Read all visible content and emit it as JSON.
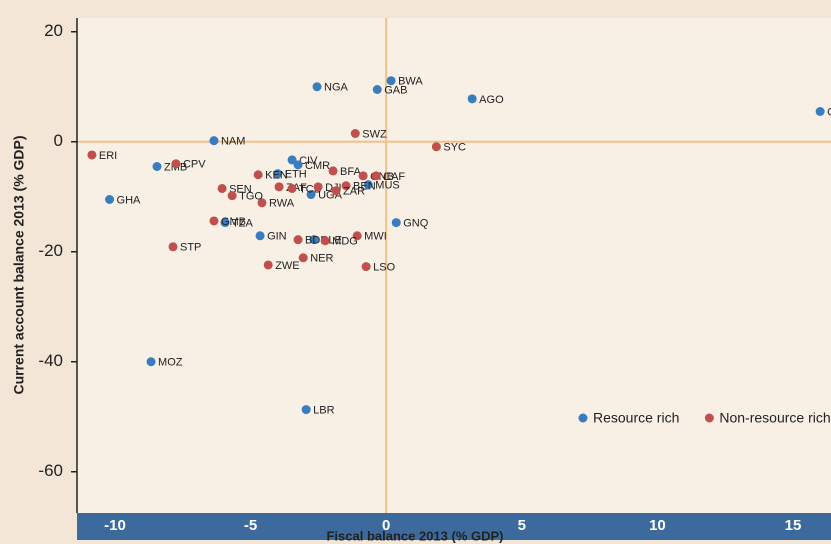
{
  "chart_data": {
    "type": "scatter",
    "x_label": "Fiscal balance 2013 (% GDP)",
    "y_label": "Current account balance 2013 (% GDP)",
    "xlim": [
      -11.4,
      16.4
    ],
    "xticks": [
      -10,
      -5,
      0,
      5,
      10,
      15
    ],
    "ylim": [
      -67.5,
      22.5
    ],
    "yticks": [
      -60,
      -40,
      -20,
      0,
      20
    ],
    "reference_lines": true,
    "legend": "lower right",
    "series": [
      {
        "name": "Resource rich",
        "color": "#3a7cc0",
        "labels": [
          "NGA",
          "BWA",
          "GAB",
          "AGO",
          "COG",
          "NAM",
          "ZMB",
          "GHA",
          "CIV",
          "CMR",
          "ETH",
          "UGA",
          "MUS",
          "GNQ",
          "TZA",
          "GIN",
          "SLE",
          "MOZ",
          "LBR"
        ],
        "x": [
          -2.55,
          0.18,
          -0.33,
          3.17,
          16.0,
          -6.35,
          -8.45,
          -10.2,
          -3.47,
          -3.25,
          -4.0,
          -2.77,
          -0.66,
          0.37,
          -5.94,
          -4.65,
          -2.66,
          -8.67,
          -2.95
        ],
        "values": [
          10.0,
          11.1,
          9.5,
          7.8,
          5.5,
          0.2,
          -4.5,
          -10.5,
          -3.3,
          -4.2,
          -5.8,
          -9.6,
          -7.8,
          -14.7,
          -14.7,
          -17.1,
          -17.8,
          -40.0,
          -48.7
        ]
      },
      {
        "name": "Non-resource rich",
        "color": "#c0504d",
        "labels": [
          "ERI",
          "CPV",
          "KEN",
          "ZAF",
          "TCD",
          "SEN",
          "RWA",
          "GMB",
          "STP",
          "DJI",
          "BFA",
          "GNB",
          "CAF",
          "BEN",
          "ZAR",
          "SWZ",
          "SYC",
          "MWI",
          "TGO",
          "BDI",
          "MDG",
          "NER",
          "ZWE",
          "LSO"
        ],
        "x": [
          -10.85,
          -7.75,
          -4.72,
          -3.95,
          -3.47,
          -6.05,
          -4.58,
          -6.35,
          -7.86,
          -2.51,
          -1.96,
          -0.85,
          -0.37,
          -1.48,
          -1.85,
          -1.14,
          1.85,
          -1.07,
          -5.68,
          -3.25,
          -2.25,
          -3.06,
          -4.35,
          -0.74
        ],
        "values": [
          -2.4,
          -4.0,
          -6.0,
          -8.2,
          -8.5,
          -8.5,
          -11.1,
          -14.4,
          -19.1,
          -8.2,
          -5.3,
          -6.2,
          -6.2,
          -8.0,
          -8.9,
          1.5,
          -0.9,
          -17.1,
          -9.8,
          -17.8,
          -18.0,
          -21.1,
          -22.4,
          -22.7
        ]
      }
    ]
  }
}
